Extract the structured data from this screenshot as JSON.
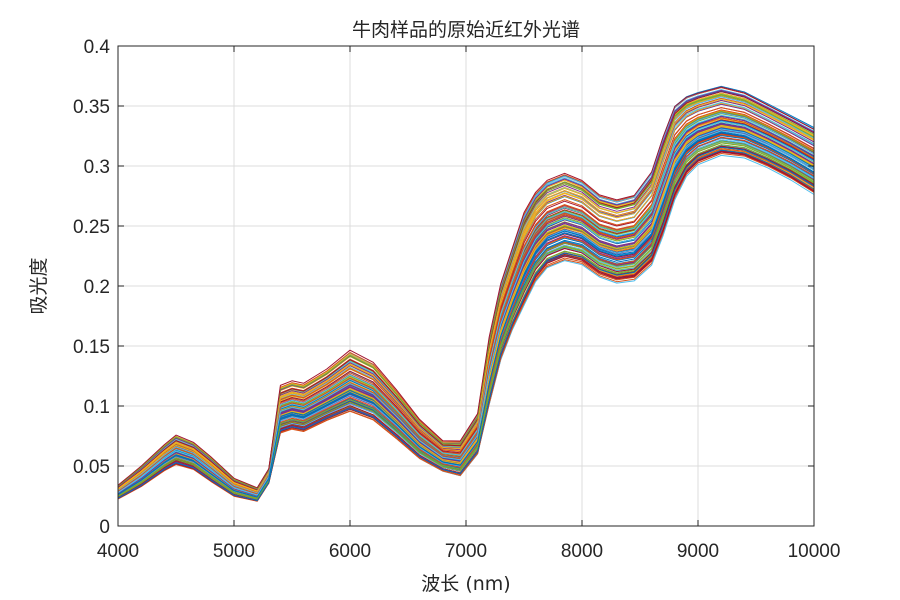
{
  "chart_data": {
    "type": "line",
    "title": "牛肉样品的原始近红外光谱",
    "xlabel": "波长 (nm)",
    "ylabel": "吸光度",
    "xlim": [
      4000,
      10000
    ],
    "ylim": [
      0,
      0.4
    ],
    "grid": true,
    "legend": "none",
    "x_ticks": [
      4000,
      5000,
      6000,
      7000,
      8000,
      9000,
      10000
    ],
    "y_ticks": [
      0,
      0.05,
      0.1,
      0.15,
      0.2,
      0.25,
      0.3,
      0.35,
      0.4
    ],
    "x_tick_labels": [
      "4000",
      "5000",
      "6000",
      "7000",
      "8000",
      "9000",
      "10000"
    ],
    "y_tick_labels": [
      "0",
      "0.05",
      "0.1",
      "0.15",
      "0.2",
      "0.25",
      "0.3",
      "0.35",
      "0.4"
    ],
    "series_count": 120,
    "x": [
      4000,
      4200,
      4400,
      4500,
      4650,
      4800,
      5000,
      5200,
      5300,
      5400,
      5500,
      5600,
      5800,
      6000,
      6200,
      6400,
      6600,
      6800,
      6950,
      7100,
      7200,
      7300,
      7400,
      7500,
      7600,
      7700,
      7850,
      8000,
      8150,
      8300,
      8450,
      8600,
      8700,
      8800,
      8900,
      9000,
      9200,
      9400,
      9600,
      9800,
      10000
    ],
    "envelope": {
      "upper": [
        0.034,
        0.05,
        0.068,
        0.076,
        0.07,
        0.058,
        0.04,
        0.032,
        0.048,
        0.118,
        0.122,
        0.12,
        0.132,
        0.148,
        0.138,
        0.115,
        0.09,
        0.072,
        0.072,
        0.095,
        0.16,
        0.205,
        0.235,
        0.265,
        0.282,
        0.292,
        0.298,
        0.292,
        0.28,
        0.276,
        0.28,
        0.3,
        0.33,
        0.355,
        0.362,
        0.365,
        0.37,
        0.365,
        0.355,
        0.345,
        0.335
      ],
      "lower": [
        0.022,
        0.032,
        0.045,
        0.05,
        0.046,
        0.036,
        0.024,
        0.02,
        0.035,
        0.075,
        0.078,
        0.076,
        0.085,
        0.092,
        0.085,
        0.07,
        0.054,
        0.044,
        0.04,
        0.058,
        0.098,
        0.135,
        0.16,
        0.18,
        0.2,
        0.212,
        0.218,
        0.215,
        0.205,
        0.2,
        0.202,
        0.215,
        0.24,
        0.27,
        0.29,
        0.3,
        0.308,
        0.306,
        0.298,
        0.288,
        0.276
      ]
    },
    "colors": [
      "#0072bd",
      "#d95319",
      "#edb120",
      "#7e2f8e",
      "#77ac30",
      "#4dbeee",
      "#a2142f"
    ]
  }
}
